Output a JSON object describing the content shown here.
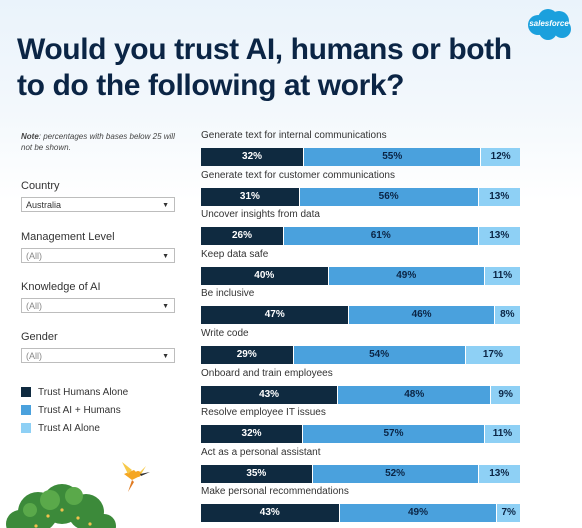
{
  "title": "Would you trust AI, humans or both to do the following at work?",
  "brand": {
    "logo_text": "salesforce",
    "color": "#1ba0dd"
  },
  "note": {
    "bold": "Note",
    "text": ": percentages with bases below 25 will not be shown."
  },
  "filters": [
    {
      "label": "Country",
      "value": "Australia"
    },
    {
      "label": "Management Level",
      "value": "(All)"
    },
    {
      "label": "Knowledge of AI",
      "value": "(All)"
    },
    {
      "label": "Gender",
      "value": "(All)"
    }
  ],
  "legend": [
    {
      "label": "Trust Humans Alone",
      "color": "#0f2a40"
    },
    {
      "label": "Trust AI + Humans",
      "color": "#4aa1dd"
    },
    {
      "label": "Trust AI Alone",
      "color": "#8ed0f5"
    }
  ],
  "chart_data": {
    "type": "bar",
    "stacked": true,
    "orientation": "horizontal",
    "categories": [
      "Generate text for internal communications",
      "Generate text for customer communications",
      "Uncover insights from data",
      "Keep data safe",
      "Be inclusive",
      "Write code",
      "Onboard and train employees",
      "Resolve employee IT issues",
      "Act as a personal assistant",
      "Make personal recommendations"
    ],
    "series": [
      {
        "name": "Trust Humans Alone",
        "values": [
          32,
          31,
          26,
          40,
          47,
          29,
          43,
          32,
          35,
          43
        ]
      },
      {
        "name": "Trust AI + Humans",
        "values": [
          55,
          56,
          61,
          49,
          46,
          54,
          48,
          57,
          52,
          49
        ]
      },
      {
        "name": "Trust AI Alone",
        "values": [
          12,
          13,
          13,
          11,
          8,
          17,
          9,
          11,
          13,
          7
        ]
      }
    ],
    "labels": [
      [
        "32%",
        "55%",
        "12%"
      ],
      [
        "31%",
        "56%",
        "13%"
      ],
      [
        "26%",
        "61%",
        "13%"
      ],
      [
        "40%",
        "49%",
        "11%"
      ],
      [
        "47%",
        "46%",
        "8%"
      ],
      [
        "29%",
        "54%",
        "17%"
      ],
      [
        "43%",
        "48%",
        "9%"
      ],
      [
        "32%",
        "57%",
        "11%"
      ],
      [
        "35%",
        "52%",
        "13%"
      ],
      [
        "43%",
        "49%",
        "7%"
      ]
    ],
    "colors": [
      "#0f2a40",
      "#4aa1dd",
      "#8ed0f5"
    ]
  }
}
